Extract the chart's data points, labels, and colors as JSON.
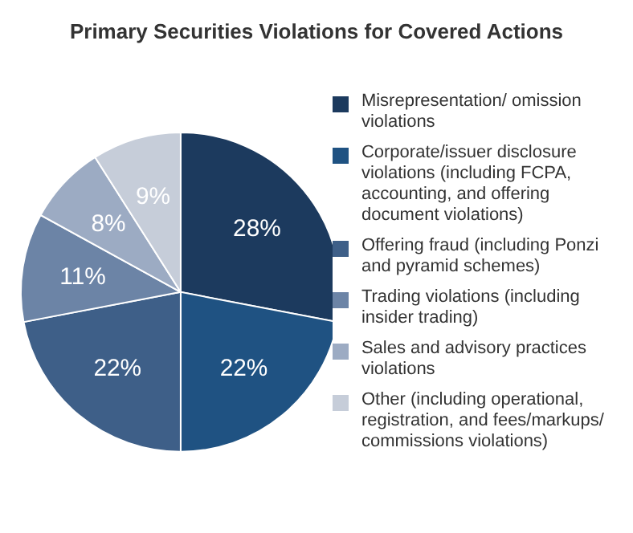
{
  "chart_data": {
    "type": "pie",
    "title": "Primary Securities Violations for Covered Actions",
    "categories": [
      "Misrepresentation/ omission violations",
      "Corporate/issuer disclosure violations (including FCPA, accounting, and offering document violations)",
      "Offering fraud (including Ponzi and pyramid schemes)",
      "Trading violations (including insider trading)",
      "Sales and advisory practices violations",
      "Other (including operational, registration, and fees/markups/ commissions violations)"
    ],
    "values": [
      28,
      22,
      22,
      11,
      8,
      9
    ],
    "value_labels": [
      "28%",
      "22%",
      "22%",
      "11%",
      "8%",
      "9%"
    ],
    "colors": [
      "#1c3a5e",
      "#1f5282",
      "#3e5f88",
      "#6c84a6",
      "#9cabc3",
      "#c6cdd9"
    ],
    "legend": "right"
  }
}
